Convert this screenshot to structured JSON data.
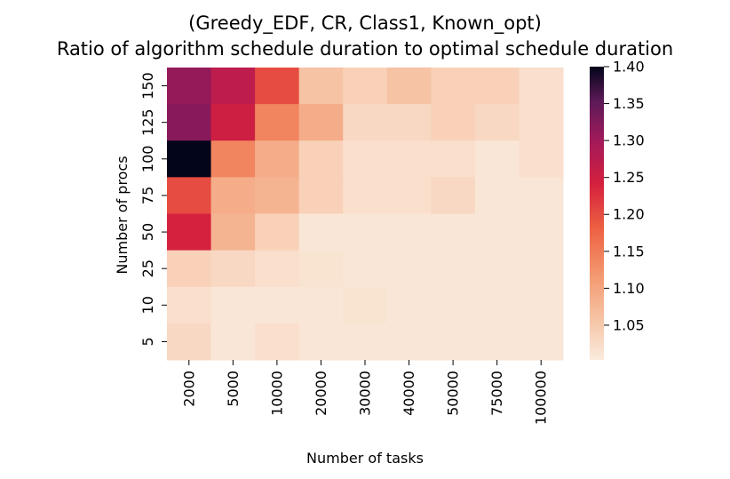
{
  "chart_data": {
    "type": "heatmap",
    "title": "(Greedy_EDF, CR, Class1, Known_opt)",
    "subtitle": "Ratio of algorithm schedule duration to optimal schedule duration",
    "xlabel": "Number of tasks",
    "ylabel": "Number of procs",
    "x_categories": [
      "2000",
      "5000",
      "10000",
      "20000",
      "30000",
      "40000",
      "50000",
      "75000",
      "100000"
    ],
    "y_categories": [
      "150",
      "125",
      "100",
      "75",
      "50",
      "25",
      "10",
      "5"
    ],
    "values": [
      [
        1.31,
        1.27,
        1.2,
        1.06,
        1.04,
        1.06,
        1.04,
        1.04,
        1.02
      ],
      [
        1.32,
        1.25,
        1.14,
        1.09,
        1.03,
        1.03,
        1.04,
        1.03,
        1.02
      ],
      [
        1.4,
        1.14,
        1.09,
        1.04,
        1.02,
        1.02,
        1.02,
        1.01,
        1.02
      ],
      [
        1.2,
        1.09,
        1.08,
        1.04,
        1.02,
        1.02,
        1.03,
        1.01,
        1.01
      ],
      [
        1.24,
        1.08,
        1.04,
        1.01,
        1.01,
        1.01,
        1.01,
        1.01,
        1.01
      ],
      [
        1.04,
        1.03,
        1.02,
        1.015,
        1.01,
        1.01,
        1.01,
        1.01,
        1.01
      ],
      [
        1.02,
        1.01,
        1.01,
        1.01,
        1.015,
        1.01,
        1.01,
        1.01,
        1.01
      ],
      [
        1.03,
        1.01,
        1.02,
        1.01,
        1.01,
        1.01,
        1.01,
        1.01,
        1.01
      ]
    ],
    "colorbar": {
      "min": 1.003,
      "max": 1.4,
      "ticks": [
        "1.05",
        "1.10",
        "1.15",
        "1.20",
        "1.25",
        "1.30",
        "1.35",
        "1.40"
      ],
      "colormap": "rocket_r"
    },
    "colorscale": [
      [
        0.0,
        "#faebdd"
      ],
      [
        0.15,
        "#f6c1a1"
      ],
      [
        0.3,
        "#f3956c"
      ],
      [
        0.45,
        "#ed6042"
      ],
      [
        0.6,
        "#d5203e"
      ],
      [
        0.75,
        "#a11a5b"
      ],
      [
        0.88,
        "#5d1a58"
      ],
      [
        1.0,
        "#03051a"
      ]
    ]
  }
}
